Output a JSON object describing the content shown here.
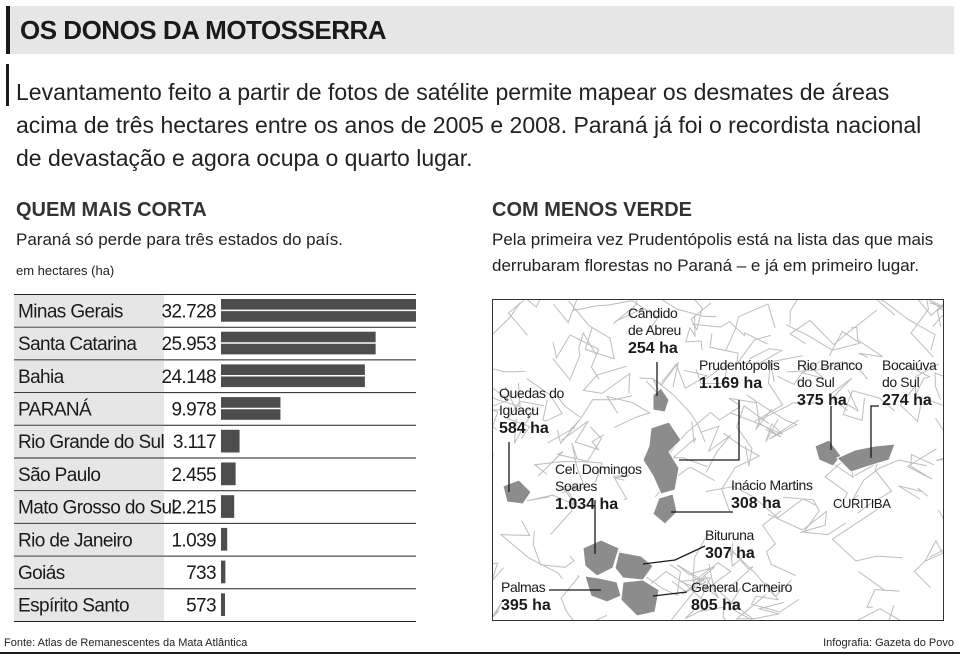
{
  "header": {
    "title": "OS DONOS DA MOTOSSERRA"
  },
  "lead": "Levantamento feito a partir de fotos de satélite permite mapear os desmates de áreas acima de três hectares entre os anos de 2005 e 2008. Paraná já foi o recordista nacional de devastação e agora ocupa o quarto lugar.",
  "left_section": {
    "title": "QUEM MAIS CORTA",
    "subtitle": "Paraná só perde para três estados do país.",
    "unit_label": "em hectares (ha)"
  },
  "right_section": {
    "title": "COM MENOS VERDE",
    "subtitle_line1": "Pela primeira vez Prudentópolis está na lista das que mais",
    "subtitle_line2": "derrubaram florestas no Paraná – e já em primeiro lugar."
  },
  "chart_data": {
    "type": "bar",
    "orientation": "horizontal",
    "unit": "ha",
    "categories": [
      "Minas Gerais",
      "Santa Catarina",
      "Bahia",
      "PARANÁ",
      "Rio Grande do Sul",
      "São Paulo",
      "Mato Grosso do Sul",
      "Rio de Janeiro",
      "Goiás",
      "Espírito Santo"
    ],
    "values": [
      32728,
      25953,
      24148,
      9978,
      3117,
      2455,
      2215,
      1039,
      733,
      573
    ],
    "value_labels": [
      "32.728",
      "25.953",
      "24.148",
      "9.978",
      "3.117",
      "2.455",
      "2.215",
      "1.039",
      "733",
      "573"
    ],
    "xlim": [
      0,
      32728
    ],
    "colors": {
      "bar": "#4d4d4d",
      "label_cell": "#e6e6e6",
      "rule": "#222222"
    }
  },
  "map": {
    "city_label": "CURITIBA",
    "colors": {
      "highlight": "#8c8c8c",
      "lines": "#bdbdbd",
      "leader": "#1a1a1a"
    },
    "places": [
      {
        "name_lines": [
          "Cândido",
          "de Abreu"
        ],
        "value": "254 ha"
      },
      {
        "name_lines": [
          "Prudentópolis"
        ],
        "value": "1.169 ha"
      },
      {
        "name_lines": [
          "Rio Branco",
          "do Sul"
        ],
        "value": "375 ha"
      },
      {
        "name_lines": [
          "Bocaiúva",
          "do Sul"
        ],
        "value": "274 ha"
      },
      {
        "name_lines": [
          "Quedas do",
          "Iguaçu"
        ],
        "value": "584 ha"
      },
      {
        "name_lines": [
          "Cel. Domingos",
          "Soares"
        ],
        "value": "1.034 ha"
      },
      {
        "name_lines": [
          "Inácio Martins"
        ],
        "value": "308 ha"
      },
      {
        "name_lines": [
          "Bituruna"
        ],
        "value": "307 ha"
      },
      {
        "name_lines": [
          "Palmas"
        ],
        "value": "395 ha"
      },
      {
        "name_lines": [
          "General Carneiro"
        ],
        "value": "805 ha"
      }
    ]
  },
  "footer": {
    "source": "Fonte: Atlas de Remanescentes da Mata Atlântica",
    "credit": "Infografia: Gazeta do Povo"
  }
}
